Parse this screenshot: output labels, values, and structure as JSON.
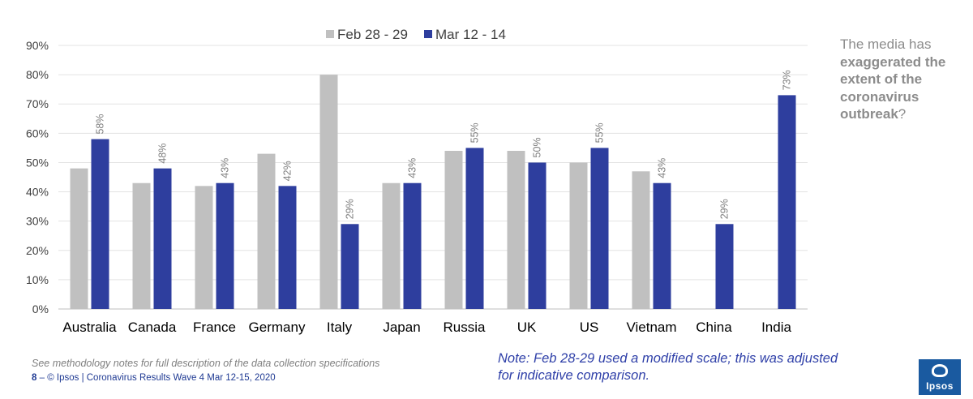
{
  "chart_data": {
    "type": "bar",
    "categories": [
      "Australia",
      "Canada",
      "France",
      "Germany",
      "Italy",
      "Japan",
      "Russia",
      "UK",
      "US",
      "Vietnam",
      "China",
      "India"
    ],
    "series": [
      {
        "name": "Feb 28 - 29",
        "color": "#c0c0c0",
        "values": [
          48,
          43,
          42,
          53,
          80,
          43,
          54,
          54,
          50,
          47,
          null,
          null
        ],
        "show_labels": false
      },
      {
        "name": "Mar 12 - 14",
        "color": "#2e3e9e",
        "values": [
          58,
          48,
          43,
          42,
          29,
          43,
          55,
          50,
          55,
          43,
          29,
          73
        ],
        "labels": [
          "58%",
          "48%",
          "43%",
          "42%",
          "29%",
          "43%",
          "55%",
          "50%",
          "55%",
          "43%",
          "29%",
          "73%"
        ],
        "show_labels": true
      }
    ],
    "ylim": [
      0,
      90
    ],
    "yticks": [
      0,
      10,
      20,
      30,
      40,
      50,
      60,
      70,
      80,
      90
    ],
    "ytick_labels": [
      "0%",
      "10%",
      "20%",
      "30%",
      "40%",
      "50%",
      "60%",
      "70%",
      "80%",
      "90%"
    ],
    "grid": true,
    "legend_position": "top-center",
    "title": "",
    "xlabel": "",
    "ylabel": ""
  },
  "side_note": {
    "prefix": "The media has",
    "bold": "exaggerated the extent of the coronavirus outbreak",
    "suffix": "?"
  },
  "footer": {
    "methodology": "See methodology notes for full description of the data collection specifications",
    "page_number": "8",
    "dash": "–",
    "credit": "© Ipsos | Coronavirus Results Wave 4 Mar 12-15, 2020"
  },
  "scale_note": "Note: Feb 28-29 used a modified scale; this was adjusted for indicative comparison.",
  "logo": {
    "text": "Ipsos",
    "color": "#1a5aa0"
  }
}
